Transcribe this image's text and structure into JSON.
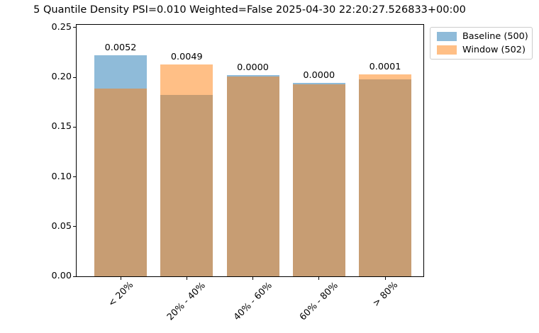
{
  "title": "5 Quantile Density PSI=0.010 Weighted=False 2025-04-30 22:20:27.526833+00:00",
  "chart_data": {
    "type": "bar",
    "subtype": "overlapping-translucent-bars",
    "title": "5 Quantile Density PSI=0.010 Weighted=False 2025-04-30 22:20:27.526833+00:00",
    "quantiles": 5,
    "psi": "0.010",
    "weighted": "False",
    "timestamp": "2025-04-30 22:20:27.526833+00:00",
    "categories": [
      "< 20%",
      "20% - 40%",
      "40% - 60%",
      "60% - 80%",
      "> 80%"
    ],
    "series": [
      {
        "name": "Baseline (500)",
        "count": 500,
        "color": "#1f77b4",
        "opacity": 0.5,
        "values": [
          0.222,
          0.182,
          0.202,
          0.194,
          0.198
        ]
      },
      {
        "name": "Window (502)",
        "count": 502,
        "color": "#ff7f0e",
        "opacity": 0.5,
        "values": [
          0.189,
          0.213,
          0.201,
          0.193,
          0.203
        ]
      }
    ],
    "bar_labels": [
      "0.0052",
      "0.0049",
      "0.0000",
      "0.0000",
      "0.0001"
    ],
    "y_ticks": [
      0.0,
      0.05,
      0.1,
      0.15,
      0.2,
      0.25
    ],
    "y_tick_labels": [
      "0.00",
      "0.05",
      "0.10",
      "0.15",
      "0.20",
      "0.25"
    ],
    "ylim": [
      0,
      0.2527
    ],
    "xlabel": "",
    "ylabel": "",
    "grid": false,
    "x_tick_rotation": 45,
    "overlap_blend_color": "#c79d74",
    "legend": {
      "position": "outside-upper-right",
      "items": [
        "Baseline (500)",
        "Window (502)"
      ]
    },
    "colors": {
      "baseline_fill": "#8fbbd9",
      "window_fill": "#ffbf86",
      "spine": "#000000",
      "legend_border": "#cccccc"
    }
  }
}
